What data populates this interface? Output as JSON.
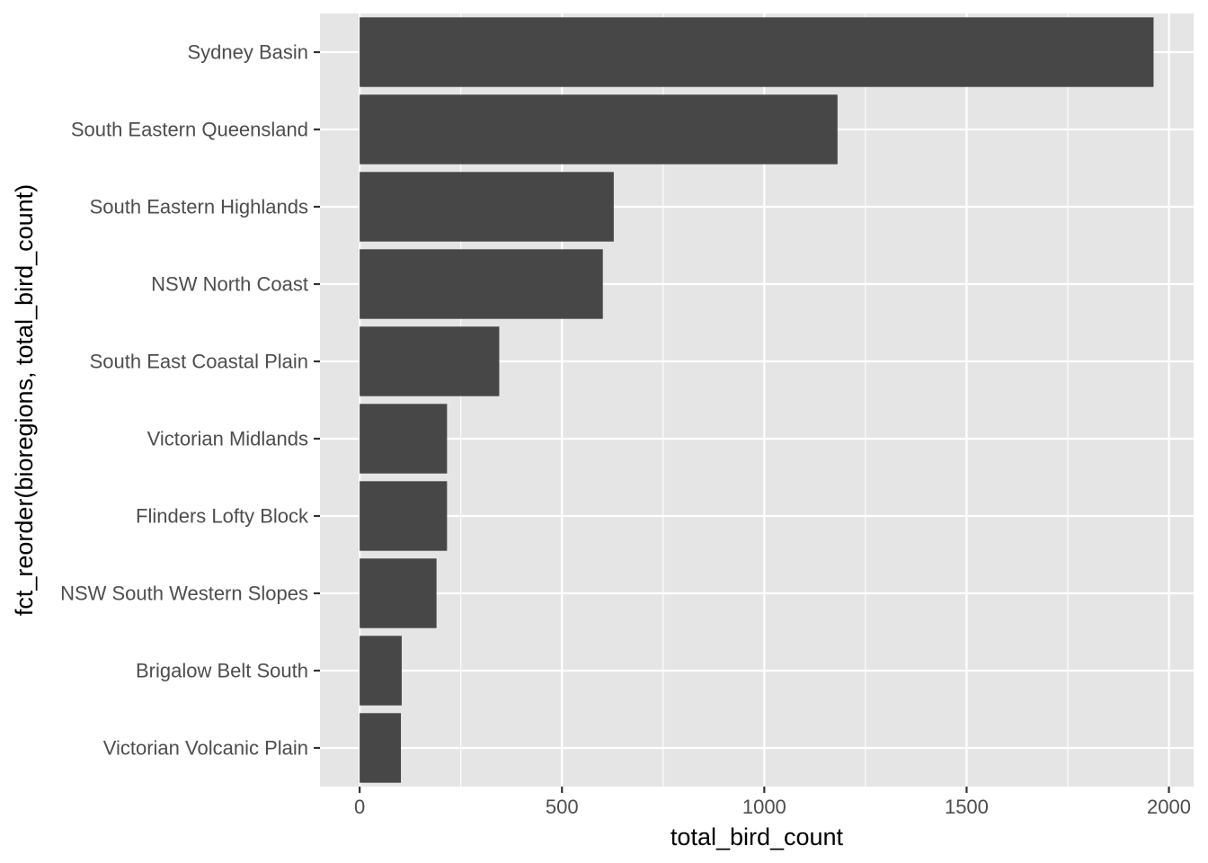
{
  "chart_data": {
    "type": "bar",
    "orientation": "horizontal",
    "categories": [
      "Sydney Basin",
      "South Eastern Queensland",
      "South Eastern Highlands",
      "NSW North Coast",
      "South East Coastal Plain",
      "Victorian Midlands",
      "Flinders Lofty Block",
      "NSW South Western Slopes",
      "Brigalow Belt South",
      "Victorian Volcanic Plain"
    ],
    "values": [
      1962,
      1181,
      628,
      601,
      345,
      216,
      216,
      190,
      104,
      102
    ],
    "xlabel": "total_bird_count",
    "ylabel": "fct_reorder(bioregions, total_bird_count)",
    "xlim": [
      -98,
      2061
    ],
    "xticks": [
      0,
      500,
      1000,
      1500,
      2000
    ],
    "xtick_labels": [
      "0",
      "500",
      "1000",
      "1500",
      "2000"
    ],
    "grid": true,
    "bar_color": "#474747",
    "panel_background": "#e5e5e5",
    "grid_color": "#ffffff"
  }
}
